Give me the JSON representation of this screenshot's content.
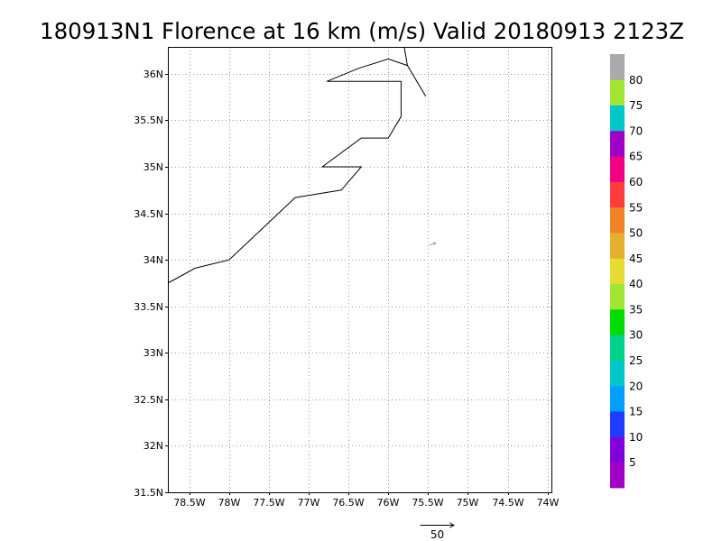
{
  "chart_data": {
    "type": "map",
    "title": "180913N1 Florence at 16 km (m/s) Valid 20180913 2123Z",
    "xlim": [
      -78.77,
      -73.95
    ],
    "ylim": [
      31.5,
      36.29
    ],
    "grid": true,
    "grid_color": "#9a9a9a",
    "coastline_color": "#000000",
    "x_ticks": [
      {
        "value": -78.5,
        "label": "78.5W"
      },
      {
        "value": -78.0,
        "label": "78W"
      },
      {
        "value": -77.5,
        "label": "77.5W"
      },
      {
        "value": -77.0,
        "label": "77W"
      },
      {
        "value": -76.5,
        "label": "76.5W"
      },
      {
        "value": -76.0,
        "label": "76W"
      },
      {
        "value": -75.5,
        "label": "75.5W"
      },
      {
        "value": -75.0,
        "label": "75W"
      },
      {
        "value": -74.5,
        "label": "74.5W"
      },
      {
        "value": -74.0,
        "label": "74W"
      }
    ],
    "y_ticks": [
      {
        "value": 31.5,
        "label": "31.5N"
      },
      {
        "value": 32.0,
        "label": "32N"
      },
      {
        "value": 32.5,
        "label": "32.5N"
      },
      {
        "value": 33.0,
        "label": "33N"
      },
      {
        "value": 33.5,
        "label": "33.5N"
      },
      {
        "value": 34.0,
        "label": "34N"
      },
      {
        "value": 34.5,
        "label": "34.5N"
      },
      {
        "value": 35.0,
        "label": "35N"
      },
      {
        "value": 35.5,
        "label": "35.5N"
      },
      {
        "value": 36.0,
        "label": "36N"
      }
    ],
    "coastline": [
      [
        [
          -78.77,
          33.75
        ],
        [
          -78.43,
          33.91
        ],
        [
          -78.0,
          34.0
        ],
        [
          -77.17,
          34.67
        ],
        [
          -76.59,
          34.75
        ],
        [
          -76.34,
          35.0
        ],
        [
          -76.83,
          35.0
        ],
        [
          -76.34,
          35.31
        ],
        [
          -76.0,
          35.31
        ],
        [
          -75.84,
          35.54
        ],
        [
          -75.84,
          35.92
        ],
        [
          -76.77,
          35.92
        ],
        [
          -76.37,
          36.06
        ],
        [
          -76.0,
          36.16
        ],
        [
          -75.76,
          36.09
        ],
        [
          -75.53,
          35.76
        ]
      ],
      [
        [
          -75.8,
          36.29
        ],
        [
          -75.76,
          36.09
        ]
      ]
    ],
    "wind_vectors": [
      {
        "lon": -75.48,
        "lat": 34.16,
        "u": 9,
        "v": 3,
        "color": "#a0a0a0"
      }
    ],
    "colorbar": {
      "position": "right",
      "levels": [
        5,
        10,
        15,
        20,
        25,
        30,
        35,
        40,
        45,
        50,
        55,
        60,
        65,
        70,
        75,
        80
      ],
      "colors": [
        "#a000c8",
        "#8200dc",
        "#1e3cff",
        "#00a0ff",
        "#00c8c8",
        "#00d28c",
        "#00dc00",
        "#a0e632",
        "#e6dc32",
        "#e6af2d",
        "#f08228",
        "#fa3c3c",
        "#f00082",
        "#a000c8",
        "#00c8c8",
        "#a0e632",
        "#aaaaaa"
      ]
    },
    "reference_vector": {
      "speed": 50
    }
  }
}
